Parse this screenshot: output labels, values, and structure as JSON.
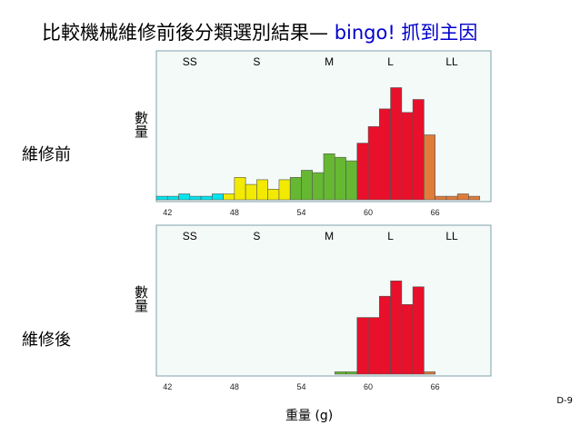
{
  "slide": {
    "title_main": "比較機械維修前後分類選別結果",
    "title_dash": "—",
    "title_highlight": "bingo!  抓到主因",
    "before_label": "維修前",
    "after_label": "維修後",
    "ylabel": "數量",
    "xlabel": "重量  (g)",
    "page_number": "D-9"
  },
  "colors": {
    "SS": "#00e5ee",
    "S": "#f2ea00",
    "M": "#66b832",
    "L": "#e8102a",
    "LL": "#e07b39",
    "panel_bg": "#f4faf8",
    "panel_border": "#7fa2aa"
  },
  "chart_data": [
    {
      "type": "bar",
      "title": "",
      "ylabel": "數量",
      "xlim": [
        41,
        71
      ],
      "ylim": [
        0,
        100
      ],
      "xticks": [
        42,
        48,
        54,
        60,
        66
      ],
      "grade_labels": [
        "SS",
        "S",
        "M",
        "L",
        "LL"
      ],
      "grade_label_x": [
        44,
        50,
        56.5,
        62,
        67.5
      ],
      "bin_width": 1,
      "bin_starts": [
        41,
        42,
        43,
        44,
        45,
        46,
        47,
        48,
        49,
        50,
        51,
        52,
        53,
        54,
        55,
        56,
        57,
        58,
        59,
        60,
        61,
        62,
        63,
        64,
        65,
        66,
        67,
        68,
        69
      ],
      "grades": [
        "SS",
        "SS",
        "SS",
        "SS",
        "SS",
        "SS",
        "S",
        "S",
        "S",
        "S",
        "S",
        "S",
        "M",
        "M",
        "M",
        "M",
        "M",
        "M",
        "L",
        "L",
        "L",
        "L",
        "L",
        "L",
        "LL",
        "LL",
        "LL",
        "LL",
        "LL"
      ],
      "values": [
        3,
        3,
        5,
        3,
        3,
        5,
        5,
        19,
        13,
        17,
        9,
        17,
        19,
        25,
        23,
        39,
        36,
        33,
        48,
        62,
        77,
        95,
        74,
        85,
        55,
        3,
        3,
        5,
        3
      ]
    },
    {
      "type": "bar",
      "title": "",
      "ylabel": "數量",
      "xlim": [
        41,
        71
      ],
      "ylim": [
        0,
        100
      ],
      "xticks": [
        42,
        48,
        54,
        60,
        66
      ],
      "grade_labels": [
        "SS",
        "S",
        "M",
        "L",
        "LL"
      ],
      "grade_label_x": [
        44,
        50,
        56.5,
        62,
        67.5
      ],
      "bin_width": 1,
      "bin_starts": [
        57,
        58,
        59,
        60,
        61,
        62,
        63,
        64,
        65
      ],
      "grades": [
        "M",
        "M",
        "L",
        "L",
        "L",
        "L",
        "L",
        "L",
        "LL"
      ],
      "values": [
        2,
        2,
        48,
        48,
        66,
        79,
        59,
        74,
        2
      ]
    }
  ]
}
